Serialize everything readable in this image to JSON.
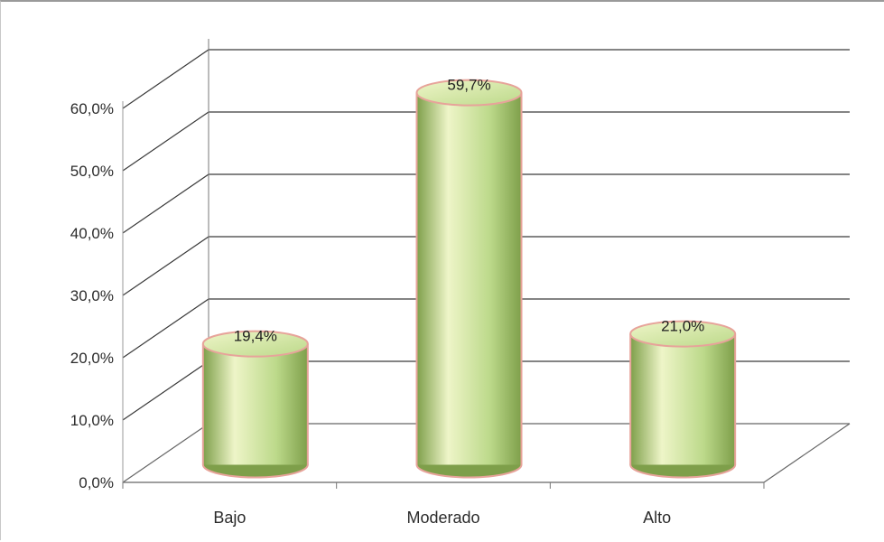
{
  "chart_data": {
    "type": "bar",
    "categories": [
      "Bajo",
      "Moderado",
      "Alto"
    ],
    "values": [
      19.4,
      59.7,
      21.0
    ],
    "data_labels": [
      "19,4%",
      "59,7%",
      "21,0%"
    ],
    "y_ticks": [
      "0,0%",
      "10,0%",
      "20,0%",
      "30,0%",
      "40,0%",
      "50,0%",
      "60,0%"
    ],
    "ylim": [
      0,
      60
    ],
    "title": "",
    "xlabel": "",
    "ylabel": "",
    "grid": true,
    "legend": "none",
    "style": "3d-cylinder",
    "colors": {
      "bar_fill_light": "#eef5c8",
      "bar_fill_mid": "#bcd98a",
      "bar_fill_dark": "#7e9f4a",
      "bar_outline": "#e7a39a",
      "gridline": "#3a3a3a"
    }
  }
}
